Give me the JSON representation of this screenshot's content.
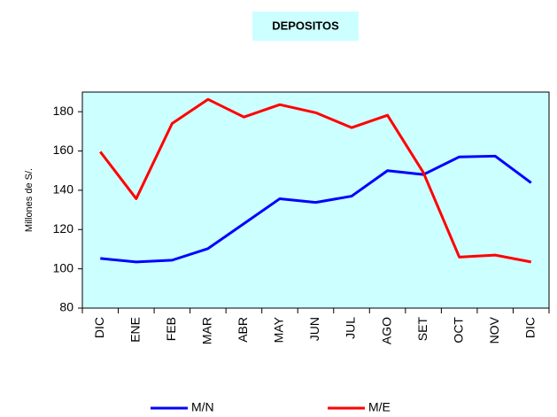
{
  "chart_data": {
    "type": "line",
    "title": "DEPOSITOS",
    "y_label": "Millones de S/.",
    "categories": [
      "DIC",
      "ENE",
      "FEB",
      "MAR",
      "ABR",
      "MAY",
      "JUN",
      "JUL",
      "AGO",
      "SET",
      "OCT",
      "NOV",
      "DIC"
    ],
    "series": [
      {
        "name": "M/N",
        "color": "#0000ff",
        "values": [
          105.3,
          103.5,
          104.4,
          110.3,
          123,
          135.7,
          133.8,
          137,
          150,
          148,
          157,
          157.4,
          143.8
        ]
      },
      {
        "name": "M/E",
        "color": "#ff0000",
        "values": [
          159.6,
          135.7,
          174,
          186.3,
          177.3,
          183.6,
          179.5,
          171.9,
          178.2,
          149,
          106,
          107,
          103.5
        ]
      }
    ],
    "ylim": [
      80,
      190
    ],
    "yticks": [
      80,
      100,
      120,
      140,
      160,
      180
    ],
    "plot_background": "#ccffff",
    "legend": "bottom"
  }
}
